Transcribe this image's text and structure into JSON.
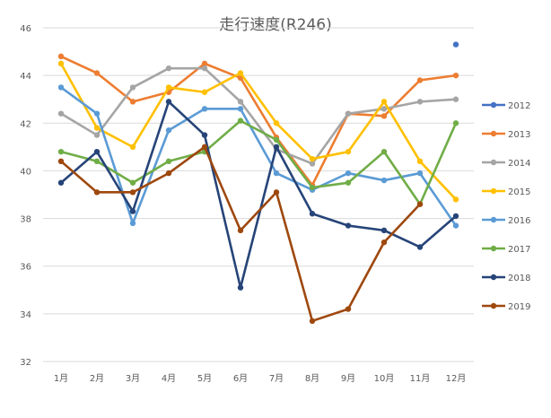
{
  "chart_data": {
    "type": "line",
    "title": "走行速度(R246)",
    "xlabel": "",
    "ylabel": "",
    "categories": [
      "1月",
      "2月",
      "3月",
      "4月",
      "5月",
      "6月",
      "7月",
      "8月",
      "9月",
      "10月",
      "11月",
      "12月"
    ],
    "ylim": [
      32,
      46
    ],
    "yticks": [
      32,
      34,
      36,
      38,
      40,
      42,
      44,
      46
    ],
    "grid": "horizontal",
    "legend_position": "right",
    "series": [
      {
        "name": "2012",
        "color": "#4472C4",
        "values": [
          null,
          null,
          null,
          null,
          null,
          null,
          null,
          null,
          null,
          null,
          null,
          45.3
        ]
      },
      {
        "name": "2013",
        "color": "#ED7D31",
        "values": [
          44.8,
          44.1,
          42.9,
          43.3,
          44.5,
          43.9,
          41.4,
          39.4,
          42.4,
          42.3,
          43.8,
          44.0
        ]
      },
      {
        "name": "2014",
        "color": "#A5A5A5",
        "values": [
          42.4,
          41.5,
          43.5,
          44.3,
          44.3,
          42.9,
          40.9,
          40.3,
          42.4,
          42.6,
          42.9,
          43.0
        ]
      },
      {
        "name": "2015",
        "color": "#FFC000",
        "values": [
          44.5,
          41.8,
          41.0,
          43.5,
          43.3,
          44.1,
          42.0,
          40.5,
          40.8,
          42.9,
          40.4,
          38.8
        ]
      },
      {
        "name": "2016",
        "color": "#5B9BD5",
        "values": [
          43.5,
          42.4,
          37.8,
          41.7,
          42.6,
          42.6,
          39.9,
          39.2,
          39.9,
          39.6,
          39.9,
          37.7
        ]
      },
      {
        "name": "2017",
        "color": "#70AD47",
        "values": [
          40.8,
          40.4,
          39.5,
          40.4,
          40.8,
          42.1,
          41.3,
          39.3,
          39.5,
          40.8,
          38.6,
          42.0
        ]
      },
      {
        "name": "2018",
        "color": "#264478",
        "values": [
          39.5,
          40.8,
          38.3,
          42.9,
          41.5,
          35.1,
          41.0,
          38.2,
          37.7,
          37.5,
          36.8,
          38.1
        ]
      },
      {
        "name": "2019",
        "color": "#9E480E",
        "values": [
          40.4,
          39.1,
          39.1,
          39.9,
          41.0,
          37.5,
          39.1,
          33.7,
          34.2,
          37.0,
          38.6,
          null
        ]
      }
    ]
  }
}
